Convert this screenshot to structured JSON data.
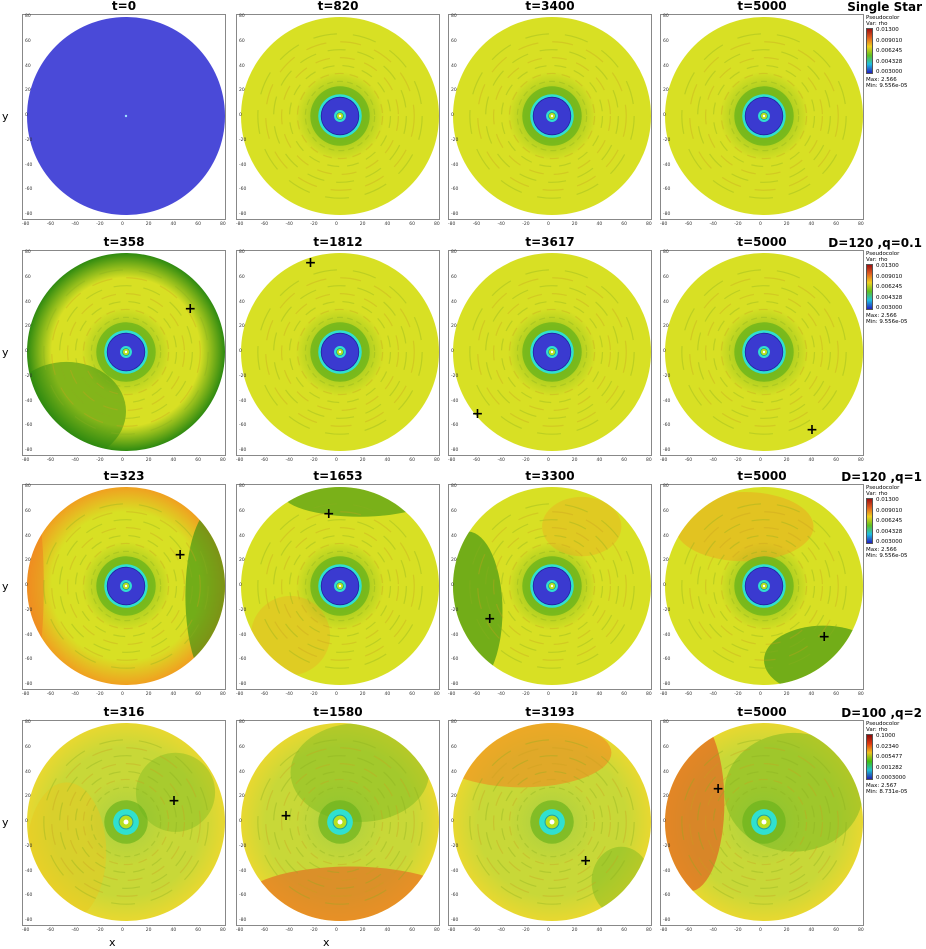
{
  "rows": [
    {
      "label": "Single Star",
      "legend": {
        "header": [
          "Pseudocolor",
          "Var: rho"
        ],
        "ticks": [
          "0.01300",
          "0.009010",
          "0.006245",
          "0.004328",
          "0.003000"
        ],
        "max": "Max: 2.566",
        "min": "Min: 9.556e-05",
        "scheme": "A"
      },
      "panels": [
        {
          "title": "t=0",
          "style": "empty"
        },
        {
          "title": "t=820",
          "style": "yellow"
        },
        {
          "title": "t=3400",
          "style": "yellow"
        },
        {
          "title": "t=5000",
          "style": "yellow"
        }
      ]
    },
    {
      "label": "D=120 ,q=0.1",
      "legend": {
        "header": [
          "Pseudocolor",
          "Var: rho"
        ],
        "ticks": [
          "0.01300",
          "0.009010",
          "0.006245",
          "0.004328",
          "0.003000"
        ],
        "max": "Max: 2.566",
        "min": "Min: 9.556e-05",
        "scheme": "A"
      },
      "panels": [
        {
          "title": "t=358",
          "style": "greenrim",
          "marker": [
            0.82,
            0.28
          ]
        },
        {
          "title": "t=1812",
          "style": "yellow",
          "marker": [
            0.36,
            0.06
          ]
        },
        {
          "title": "t=3617",
          "style": "yellow",
          "marker": [
            0.14,
            0.79
          ]
        },
        {
          "title": "t=5000",
          "style": "yellow",
          "marker": [
            0.74,
            0.87
          ]
        }
      ]
    },
    {
      "label": "D=120 ,q=1",
      "legend": {
        "header": [
          "Pseudocolor",
          "Var: rho"
        ],
        "ticks": [
          "0.01300",
          "0.009010",
          "0.006245",
          "0.004328",
          "0.003000"
        ],
        "max": "Max: 2.566",
        "min": "Min: 9.556e-05",
        "scheme": "A"
      },
      "panels": [
        {
          "title": "t=323",
          "style": "orange",
          "marker": [
            0.77,
            0.34
          ]
        },
        {
          "title": "t=1653",
          "style": "yellowtop",
          "marker": [
            0.45,
            0.14
          ]
        },
        {
          "title": "t=3300",
          "style": "greenleft",
          "marker": [
            0.2,
            0.65
          ]
        },
        {
          "title": "t=5000",
          "style": "greenbr",
          "marker": [
            0.8,
            0.74
          ]
        }
      ]
    },
    {
      "label": "D=100 ,q=2",
      "legend": {
        "header": [
          "Pseudocolor",
          "Var: rho"
        ],
        "ticks": [
          "0.1000",
          "0.02340",
          "0.005477",
          "0.001282",
          "0.0003000"
        ],
        "max": "Max: 2.567",
        "min": "Min: 8.731e-05",
        "scheme": "B"
      },
      "panels": [
        {
          "title": "t=316",
          "style": "q2a",
          "marker": [
            0.74,
            0.39
          ]
        },
        {
          "title": "t=1580",
          "style": "q2b",
          "marker": [
            0.24,
            0.46
          ]
        },
        {
          "title": "t=3193",
          "style": "q2c",
          "marker": [
            0.67,
            0.68
          ]
        },
        {
          "title": "t=5000",
          "style": "q2d",
          "marker": [
            0.28,
            0.33
          ]
        }
      ]
    }
  ],
  "axes": {
    "ylabel": "y",
    "xlabel": "x",
    "yticks": [
      "80",
      "60",
      "40",
      "20",
      "0",
      "-20",
      "-40",
      "-60",
      "-80"
    ],
    "xticks": [
      "-80",
      "-60",
      "-40",
      "-20",
      "0",
      "20",
      "40",
      "60",
      "80"
    ]
  },
  "colors": {
    "empty": "#4a4ad8",
    "yellow": "#d8e024",
    "green": "#6cb41c",
    "darkgreen": "#2e8a10",
    "orange": "#f0a020",
    "cyan": "#30e0d0",
    "blue": "#3a3ad0"
  }
}
